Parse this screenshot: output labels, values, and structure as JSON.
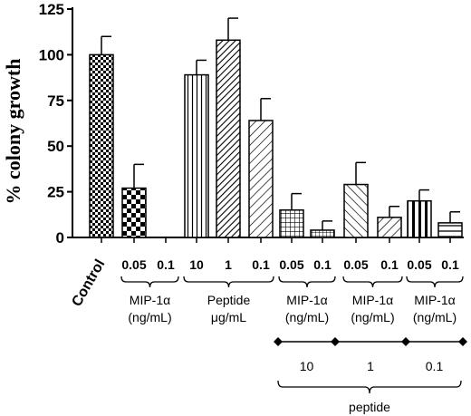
{
  "chart_data": {
    "type": "bar",
    "ylabel": "% colony growth",
    "ylim": [
      0,
      125
    ],
    "yticks": [
      "0",
      "25",
      "50",
      "75",
      "100",
      "125"
    ],
    "grid": false,
    "bars": [
      {
        "label": "Control",
        "value": 100,
        "error": 10,
        "pattern": "check-small"
      },
      {
        "label": "0.05",
        "value": 27,
        "error": 13,
        "pattern": "check-large"
      },
      {
        "label": "0.1",
        "value": 0,
        "error": 0,
        "pattern": "none"
      },
      {
        "label": "10",
        "value": 89,
        "error": 8,
        "pattern": "vert"
      },
      {
        "label": "1",
        "value": 108,
        "error": 12,
        "pattern": "diag-dense"
      },
      {
        "label": "0.1",
        "value": 64,
        "error": 12,
        "pattern": "diag-sparse"
      },
      {
        "label": "0.05",
        "value": 15,
        "error": 9,
        "pattern": "grid"
      },
      {
        "label": "0.1",
        "value": 4,
        "error": 5,
        "pattern": "grid-small"
      },
      {
        "label": "0.05",
        "value": 29,
        "error": 12,
        "pattern": "back-diag"
      },
      {
        "label": "0.1",
        "value": 11,
        "error": 6,
        "pattern": "diag-sparse"
      },
      {
        "label": "0.05",
        "value": 20,
        "error": 6,
        "pattern": "vert-thick"
      },
      {
        "label": "0.1",
        "value": 8,
        "error": 6,
        "pattern": "horiz"
      }
    ],
    "groups": [
      {
        "line1": "MIP-1α",
        "line2": "(ng/mL)",
        "bars": [
          1,
          2
        ]
      },
      {
        "line1": "Peptide",
        "line2": "μg/mL",
        "bars": [
          3,
          4,
          5
        ]
      },
      {
        "line1": "MIP-1α",
        "line2": "(ng/mL)",
        "bars": [
          6,
          7
        ]
      },
      {
        "line1": "MIP-1α",
        "line2": "(ng/mL)",
        "bars": [
          8,
          9
        ]
      },
      {
        "line1": "MIP-1α",
        "line2": "(ng/mL)",
        "bars": [
          10,
          11
        ]
      }
    ],
    "peptide_levels": [
      "10",
      "1",
      "0.1"
    ],
    "peptide_label": "peptide"
  }
}
